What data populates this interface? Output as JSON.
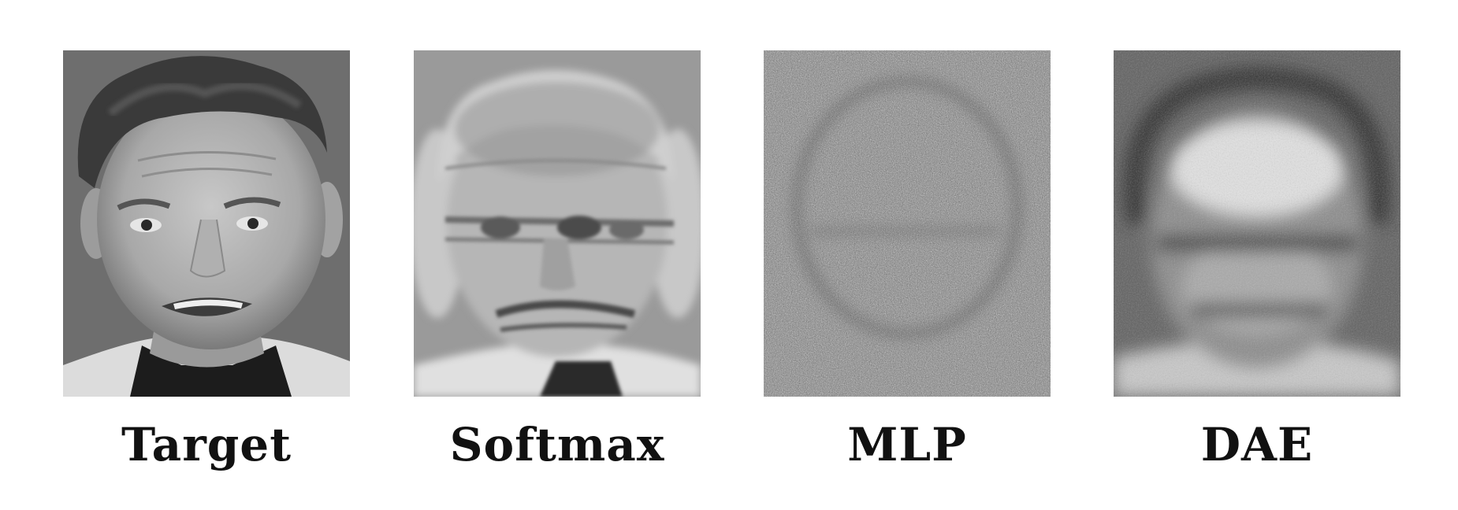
{
  "panels": [
    {
      "key": "target",
      "label": "Target"
    },
    {
      "key": "softmax",
      "label": "Softmax"
    },
    {
      "key": "mlp",
      "label": "MLP"
    },
    {
      "key": "dae",
      "label": "DAE"
    }
  ],
  "colors": {
    "background": "#ffffff",
    "caption": "#111111"
  }
}
